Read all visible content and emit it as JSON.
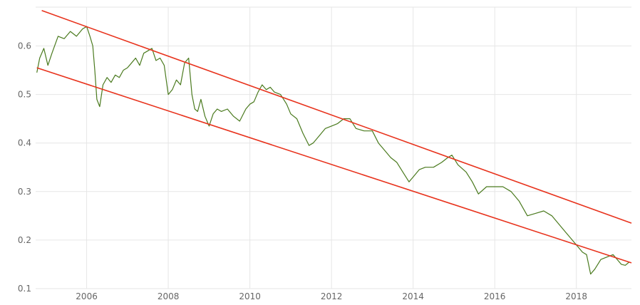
{
  "chart_data": {
    "type": "line",
    "title": "",
    "xlabel": "",
    "ylabel": "",
    "xlim": [
      2004.75,
      2019.35
    ],
    "ylim": [
      0.1,
      0.68
    ],
    "x_ticks": [
      2006,
      2008,
      2010,
      2012,
      2014,
      2016,
      2018
    ],
    "x_tick_labels": [
      "2006",
      "2008",
      "2010",
      "2012",
      "2014",
      "2016",
      "2018"
    ],
    "y_ticks": [
      0.1,
      0.2,
      0.3,
      0.4,
      0.5,
      0.6
    ],
    "y_tick_labels": [
      "0.1",
      "0.2",
      "0.3",
      "0.4",
      "0.5",
      "0.6"
    ],
    "grid": true,
    "legend": "none",
    "series": [
      {
        "color": "#4a7a1e",
        "x": [
          2004.78,
          2004.85,
          2004.95,
          2005.05,
          2005.15,
          2005.3,
          2005.45,
          2005.6,
          2005.75,
          2005.9,
          2006.0,
          2006.08,
          2006.15,
          2006.2,
          2006.25,
          2006.32,
          2006.4,
          2006.5,
          2006.6,
          2006.7,
          2006.8,
          2006.9,
          2007.0,
          2007.1,
          2007.2,
          2007.3,
          2007.4,
          2007.5,
          2007.6,
          2007.7,
          2007.8,
          2007.9,
          2008.0,
          2008.1,
          2008.2,
          2008.3,
          2008.4,
          2008.5,
          2008.58,
          2008.65,
          2008.72,
          2008.8,
          2008.9,
          2009.0,
          2009.1,
          2009.2,
          2009.3,
          2009.45,
          2009.6,
          2009.75,
          2009.9,
          2010.0,
          2010.1,
          2010.2,
          2010.3,
          2010.4,
          2010.5,
          2010.6,
          2010.75,
          2010.9,
          2011.0,
          2011.15,
          2011.3,
          2011.45,
          2011.55,
          2011.7,
          2011.85,
          2012.0,
          2012.15,
          2012.3,
          2012.45,
          2012.6,
          2012.8,
          2013.0,
          2013.15,
          2013.3,
          2013.45,
          2013.6,
          2013.75,
          2013.9,
          2014.0,
          2014.15,
          2014.3,
          2014.5,
          2014.7,
          2014.85,
          2014.95,
          2015.1,
          2015.3,
          2015.45,
          2015.6,
          2015.8,
          2016.0,
          2016.2,
          2016.4,
          2016.6,
          2016.8,
          2017.0,
          2017.2,
          2017.4,
          2017.6,
          2017.75,
          2017.9,
          2018.05,
          2018.15,
          2018.25,
          2018.35,
          2018.45,
          2018.6,
          2018.75,
          2018.9,
          2019.0,
          2019.1,
          2019.2,
          2019.3
        ],
        "y": [
          0.545,
          0.575,
          0.595,
          0.56,
          0.585,
          0.62,
          0.615,
          0.63,
          0.62,
          0.635,
          0.64,
          0.62,
          0.6,
          0.55,
          0.49,
          0.475,
          0.52,
          0.535,
          0.525,
          0.54,
          0.535,
          0.55,
          0.555,
          0.565,
          0.575,
          0.56,
          0.585,
          0.59,
          0.595,
          0.57,
          0.575,
          0.56,
          0.5,
          0.51,
          0.53,
          0.52,
          0.565,
          0.575,
          0.5,
          0.47,
          0.465,
          0.49,
          0.455,
          0.435,
          0.46,
          0.47,
          0.465,
          0.47,
          0.455,
          0.445,
          0.47,
          0.48,
          0.485,
          0.505,
          0.52,
          0.51,
          0.515,
          0.505,
          0.5,
          0.48,
          0.46,
          0.45,
          0.42,
          0.395,
          0.4,
          0.415,
          0.43,
          0.435,
          0.44,
          0.45,
          0.45,
          0.43,
          0.425,
          0.425,
          0.4,
          0.385,
          0.37,
          0.36,
          0.34,
          0.32,
          0.33,
          0.345,
          0.35,
          0.35,
          0.36,
          0.37,
          0.375,
          0.355,
          0.34,
          0.32,
          0.295,
          0.31,
          0.31,
          0.31,
          0.3,
          0.28,
          0.25,
          0.255,
          0.26,
          0.25,
          0.23,
          0.215,
          0.2,
          0.185,
          0.175,
          0.17,
          0.13,
          0.14,
          0.16,
          0.165,
          0.17,
          0.16,
          0.15,
          0.148,
          0.155
        ]
      },
      {
        "color": "#e8331d",
        "x": [
          2004.9,
          2019.35
        ],
        "y": [
          0.673,
          0.235
        ]
      },
      {
        "color": "#e8331d",
        "x": [
          2004.78,
          2019.35
        ],
        "y": [
          0.555,
          0.153
        ]
      }
    ]
  }
}
